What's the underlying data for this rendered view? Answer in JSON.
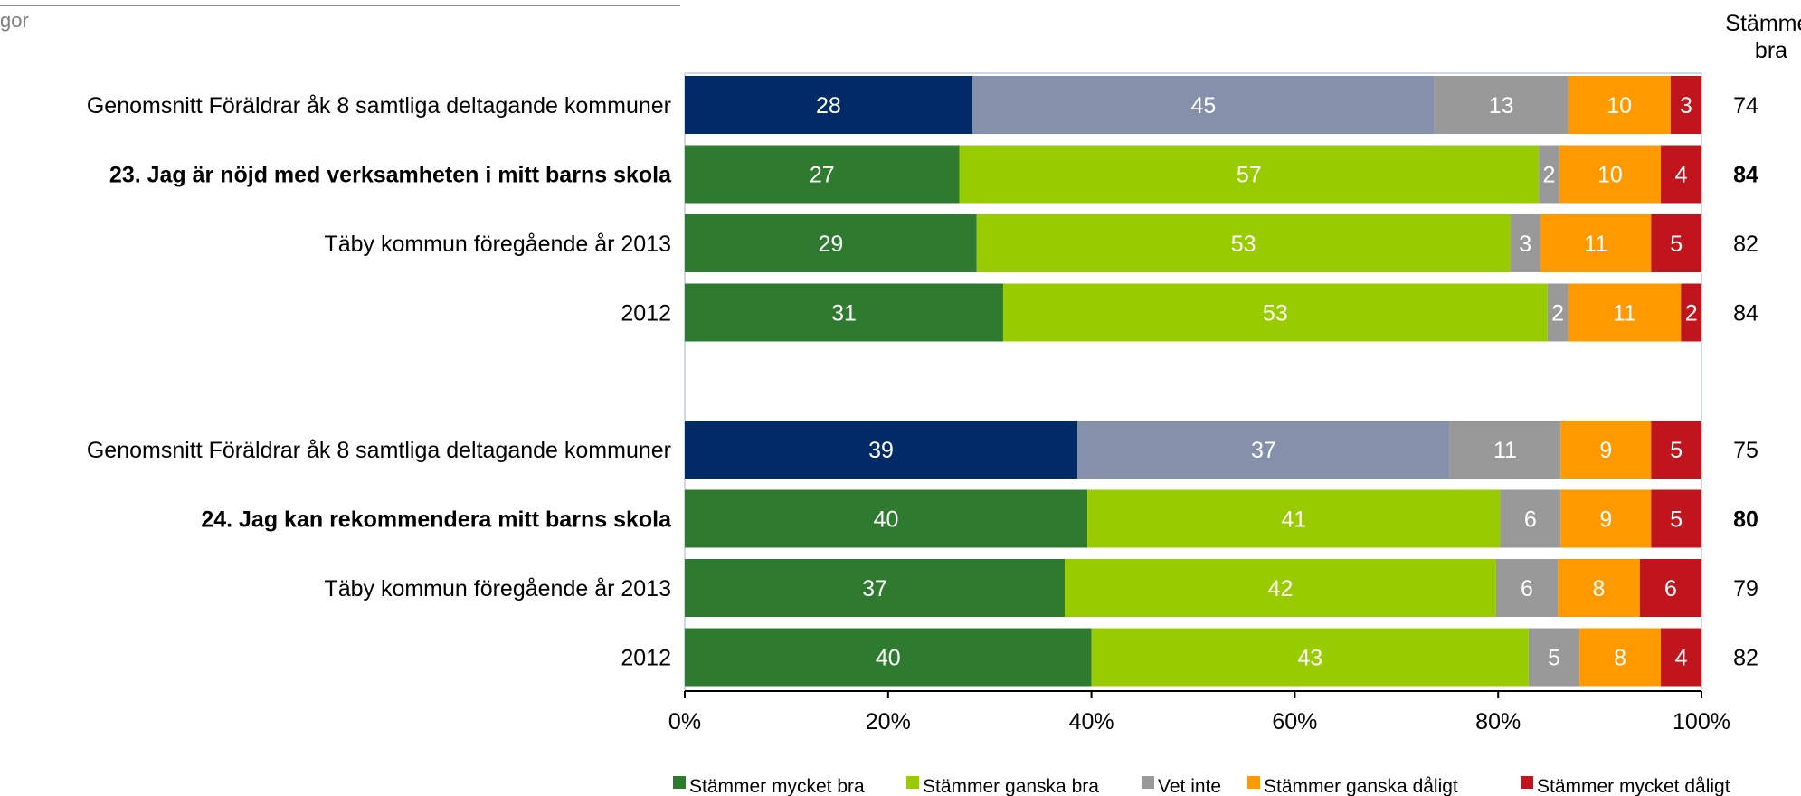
{
  "header_fragment": "gor",
  "chart_data": {
    "type": "bar",
    "orientation": "horizontal",
    "stacked": "percent",
    "extra_column_header": [
      "Stämmer",
      "bra"
    ],
    "series": [
      {
        "name": "Stämmer mycket bra",
        "color": "#2e7a2e"
      },
      {
        "name": "Stämmer ganska bra",
        "color": "#99cc00"
      },
      {
        "name": "Vet inte",
        "color": "#999999"
      },
      {
        "name": "Stämmer ganska dåligt",
        "color": "#ff9900"
      },
      {
        "name": "Stämmer mycket dåligt",
        "color": "#c0151d"
      }
    ],
    "groups": [
      {
        "rows": [
          {
            "label": "Genomsnitt Föräldrar åk 8 samtliga deltagande kommuner",
            "bold": false,
            "benchmark": true,
            "values": [
              28,
              45,
              13,
              10,
              3
            ],
            "stammer_bra": "74"
          },
          {
            "label": "23. Jag är nöjd med verksamheten i mitt barns skola",
            "bold": true,
            "benchmark": false,
            "values": [
              27,
              57,
              2,
              10,
              4
            ],
            "stammer_bra": "84"
          },
          {
            "label": "Täby kommun föregående år 2013",
            "bold": false,
            "benchmark": false,
            "values": [
              29,
              53,
              3,
              11,
              5
            ],
            "stammer_bra": "82"
          },
          {
            "label": "2012",
            "bold": false,
            "benchmark": false,
            "values": [
              31,
              53,
              2,
              11,
              2
            ],
            "stammer_bra": "84"
          }
        ]
      },
      {
        "rows": [
          {
            "label": "Genomsnitt Föräldrar åk 8 samtliga deltagande kommuner",
            "bold": false,
            "benchmark": true,
            "values": [
              39,
              37,
              11,
              9,
              5
            ],
            "stammer_bra": "75"
          },
          {
            "label": "24. Jag kan rekommendera mitt barns skola",
            "bold": true,
            "benchmark": false,
            "values": [
              40,
              41,
              6,
              9,
              5
            ],
            "stammer_bra": "80"
          },
          {
            "label": "Täby kommun föregående år 2013",
            "bold": false,
            "benchmark": false,
            "values": [
              37,
              42,
              6,
              8,
              6
            ],
            "stammer_bra": "79"
          },
          {
            "label": "2012",
            "bold": false,
            "benchmark": false,
            "values": [
              40,
              43,
              5,
              8,
              4
            ],
            "stammer_bra": "82"
          }
        ]
      }
    ],
    "benchmark_colors": [
      "#002b66",
      "#8590ab",
      "#999999",
      "#ff9900",
      "#c0151d"
    ],
    "x_ticks": [
      "0%",
      "20%",
      "40%",
      "60%",
      "80%",
      "100%"
    ],
    "xlim": [
      0,
      100
    ],
    "legend_position": "bottom",
    "grid": false
  }
}
